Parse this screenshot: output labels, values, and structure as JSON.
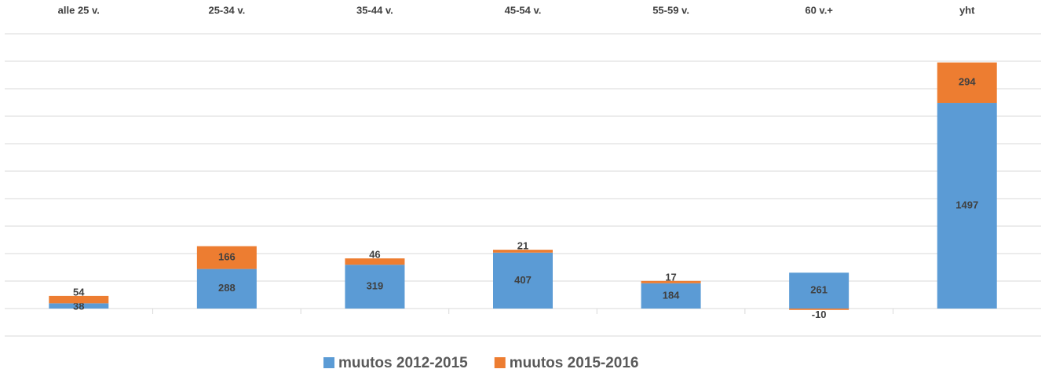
{
  "chart_data": {
    "type": "stacked_bar",
    "categories": [
      "alle 25 v.",
      "25-34 v.",
      "35-44 v.",
      "45-54 v.",
      "55-59 v.",
      "60 v.+",
      "yht"
    ],
    "series": [
      {
        "name": "muutos 2012-2015",
        "color": "#5b9bd5",
        "values": [
          38,
          288,
          319,
          407,
          184,
          261,
          1497
        ]
      },
      {
        "name": "muutos 2015-2016",
        "color": "#ed7d31",
        "values": [
          54,
          166,
          46,
          21,
          17,
          -10,
          294
        ]
      }
    ],
    "ylim": [
      -200,
      2000
    ],
    "yticks": [
      -200,
      0,
      200,
      400,
      600,
      800,
      1000,
      1200,
      1400,
      1600,
      1800,
      2000
    ],
    "grid": true,
    "legend": "bottom"
  }
}
